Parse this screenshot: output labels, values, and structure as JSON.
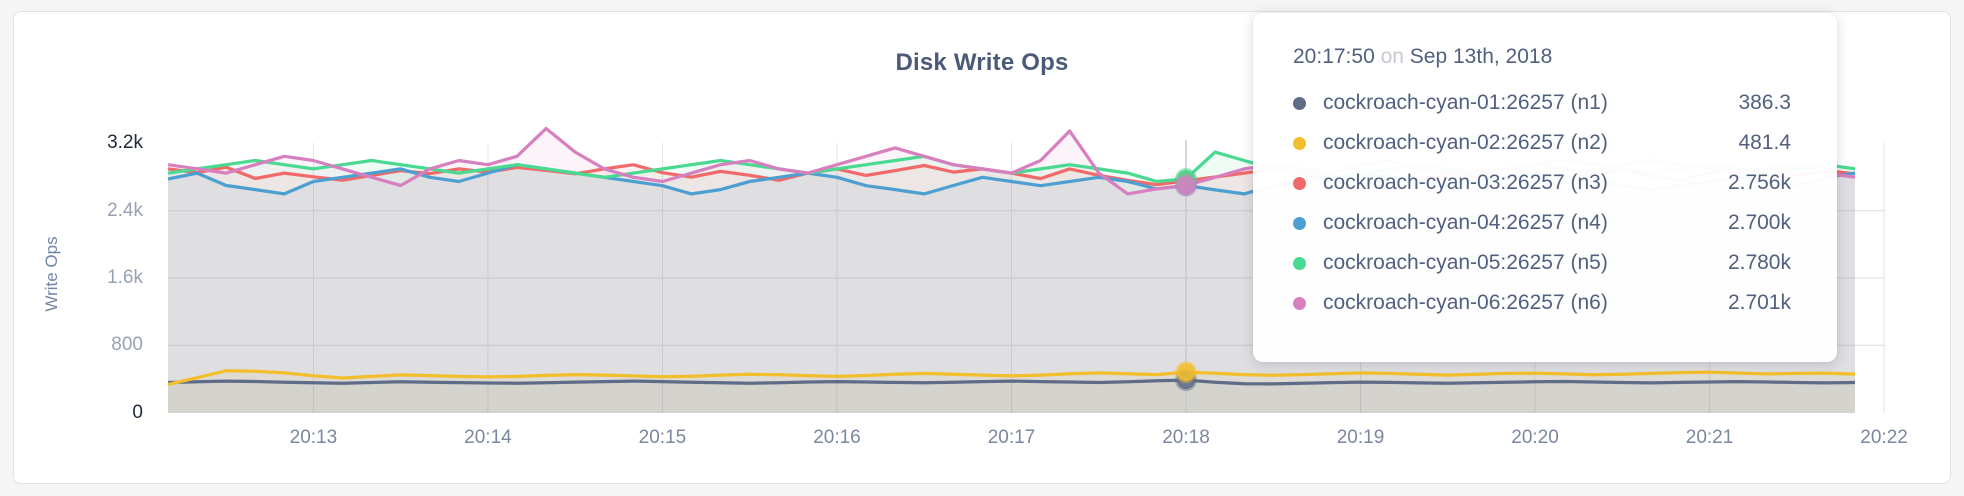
{
  "page": {
    "background": "#f5f5f6",
    "card_border": "#e2e2e5"
  },
  "chart_data": {
    "type": "area",
    "title": "Disk Write Ops",
    "ylabel": "Write Ops",
    "xlabel": "",
    "ylim": [
      0,
      3200
    ],
    "grid": "on",
    "sample_interval_seconds": 10,
    "x_ticks": [
      "20:13",
      "20:14",
      "20:15",
      "20:16",
      "20:17",
      "20:18",
      "20:19",
      "20:20",
      "20:21",
      "20:22"
    ],
    "y_ticks": [
      {
        "label": "0",
        "value": 0,
        "emph": true,
        "grid": false
      },
      {
        "label": "800",
        "value": 800,
        "emph": false,
        "grid": true
      },
      {
        "label": "1.6k",
        "value": 1600,
        "emph": false,
        "grid": true
      },
      {
        "label": "2.4k",
        "value": 2400,
        "emph": false,
        "grid": true
      },
      {
        "label": "3.2k",
        "value": 3200,
        "emph": true,
        "grid": false
      }
    ],
    "series": [
      {
        "id": "n1",
        "name": "cockroach-cyan-01:26257 (n1)",
        "color": "#5F6C87",
        "values": [
          358,
          366,
          374,
          370,
          362,
          354,
          350,
          358,
          366,
          362,
          357,
          352,
          349,
          354,
          363,
          369,
          374,
          369,
          360,
          354,
          350,
          356,
          364,
          369,
          364,
          359,
          354,
          360,
          369,
          374,
          369,
          364,
          358,
          368,
          378,
          386.3,
          362,
          344,
          341,
          349,
          357,
          363,
          359,
          353,
          349,
          355,
          361,
          366,
          370,
          364,
          358,
          353,
          359,
          364,
          369,
          364,
          358,
          353,
          358
        ]
      },
      {
        "id": "n2",
        "name": "cockroach-cyan-02:26257 (n2)",
        "color": "#F2BE2C",
        "values": [
          335,
          415,
          498,
          492,
          472,
          438,
          412,
          430,
          448,
          440,
          430,
          424,
          430,
          442,
          452,
          446,
          436,
          426,
          432,
          446,
          456,
          450,
          440,
          430,
          441,
          456,
          466,
          456,
          446,
          436,
          446,
          462,
          472,
          462,
          452,
          481.4,
          468,
          452,
          444,
          452,
          462,
          472,
          466,
          456,
          446,
          456,
          466,
          470,
          460,
          450,
          456,
          466,
          476,
          481,
          470,
          460,
          466,
          470,
          458
        ]
      },
      {
        "id": "n3",
        "name": "cockroach-cyan-03:26257 (n3)",
        "color": "#F16969",
        "values": [
          2898,
          2852,
          2918,
          2784,
          2848,
          2804,
          2762,
          2820,
          2878,
          2842,
          2898,
          2858,
          2916,
          2880,
          2840,
          2898,
          2948,
          2852,
          2800,
          2868,
          2822,
          2762,
          2848,
          2898,
          2820,
          2878,
          2938,
          2860,
          2898,
          2848,
          2782,
          2898,
          2822,
          2762,
          2710,
          2756,
          2802,
          2848,
          2898,
          2840,
          2782,
          2848,
          2802,
          2762,
          2820,
          2868,
          2898,
          2848,
          2802,
          2840,
          2878,
          2820,
          2762,
          2848,
          2898,
          2858,
          2820,
          2878,
          2840
        ]
      },
      {
        "id": "n4",
        "name": "cockroach-cyan-04:26257 (n4)",
        "color": "#4E9FD1",
        "values": [
          2778,
          2848,
          2700,
          2652,
          2600,
          2748,
          2798,
          2848,
          2898,
          2798,
          2748,
          2848,
          2948,
          2898,
          2848,
          2798,
          2748,
          2698,
          2600,
          2652,
          2748,
          2798,
          2848,
          2798,
          2698,
          2652,
          2600,
          2700,
          2798,
          2748,
          2698,
          2748,
          2798,
          2748,
          2660,
          2700,
          2648,
          2600,
          2700,
          2748,
          2798,
          2848,
          2798,
          2748,
          2698,
          2748,
          2798,
          2848,
          2798,
          2748,
          2698,
          2652,
          2700,
          2748,
          2798,
          2748,
          2698,
          2798,
          2848
        ]
      },
      {
        "id": "n5",
        "name": "cockroach-cyan-05:26257 (n5)",
        "color": "#49D990",
        "values": [
          2848,
          2898,
          2948,
          2998,
          2948,
          2898,
          2948,
          2998,
          2948,
          2898,
          2848,
          2898,
          2948,
          2898,
          2848,
          2798,
          2848,
          2898,
          2948,
          2998,
          2948,
          2898,
          2848,
          2898,
          2948,
          2998,
          3048,
          2948,
          2898,
          2848,
          2898,
          2948,
          2898,
          2848,
          2748,
          2780,
          3098,
          2998,
          2898,
          2848,
          2798,
          2848,
          2898,
          2948,
          2898,
          2848,
          2898,
          2948,
          2998,
          2948,
          2898,
          2848,
          2898,
          2948,
          2898,
          2848,
          2898,
          2948,
          2898
        ]
      },
      {
        "id": "n6",
        "name": "cockroach-cyan-06:26257 (n6)",
        "color": "#D77FBF",
        "values": [
          2948,
          2898,
          2848,
          2948,
          3048,
          2998,
          2898,
          2798,
          2700,
          2898,
          2998,
          2948,
          3048,
          3378,
          3098,
          2898,
          2798,
          2748,
          2848,
          2948,
          2998,
          2898,
          2848,
          2948,
          3048,
          3148,
          3048,
          2948,
          2898,
          2848,
          2998,
          3348,
          2848,
          2600,
          2660,
          2701,
          2798,
          2898,
          2948,
          2898,
          2848,
          2948,
          2998,
          2898,
          2848,
          2798,
          2898,
          2948,
          2898,
          2848,
          2948,
          2998,
          2948,
          2898,
          2848,
          2898,
          2948,
          2848,
          2798
        ]
      }
    ],
    "hover": {
      "index": 35,
      "time": "20:17:50",
      "separator": "on",
      "date": "Sep 13th, 2018",
      "rows": [
        {
          "series": "n1",
          "value_text": "386.3"
        },
        {
          "series": "n2",
          "value_text": "481.4"
        },
        {
          "series": "n3",
          "value_text": "2.756k"
        },
        {
          "series": "n4",
          "value_text": "2.700k"
        },
        {
          "series": "n5",
          "value_text": "2.780k"
        },
        {
          "series": "n6",
          "value_text": "2.701k"
        }
      ]
    }
  }
}
